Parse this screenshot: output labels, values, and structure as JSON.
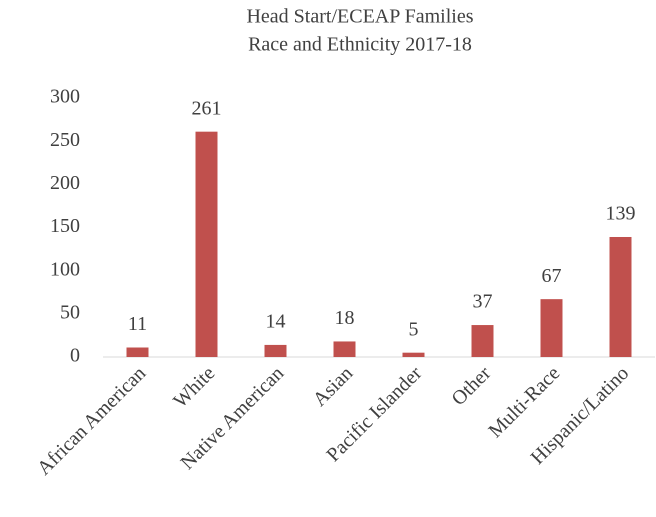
{
  "chart_data": {
    "type": "bar",
    "title": [
      "Head Start/ECEAP Families",
      "Race and Ethnicity 2017-18"
    ],
    "categories": [
      "African American",
      "White",
      "Native American",
      "Asian",
      "Pacific Islander",
      "Other",
      "Multi-Race",
      "Hispanic/Latino"
    ],
    "values": [
      11,
      261,
      14,
      18,
      5,
      37,
      67,
      139
    ],
    "color": "#c0504d",
    "ylim": [
      0,
      300
    ],
    "yticks": [
      0,
      50,
      100,
      150,
      200,
      250,
      300
    ],
    "grid": false
  }
}
